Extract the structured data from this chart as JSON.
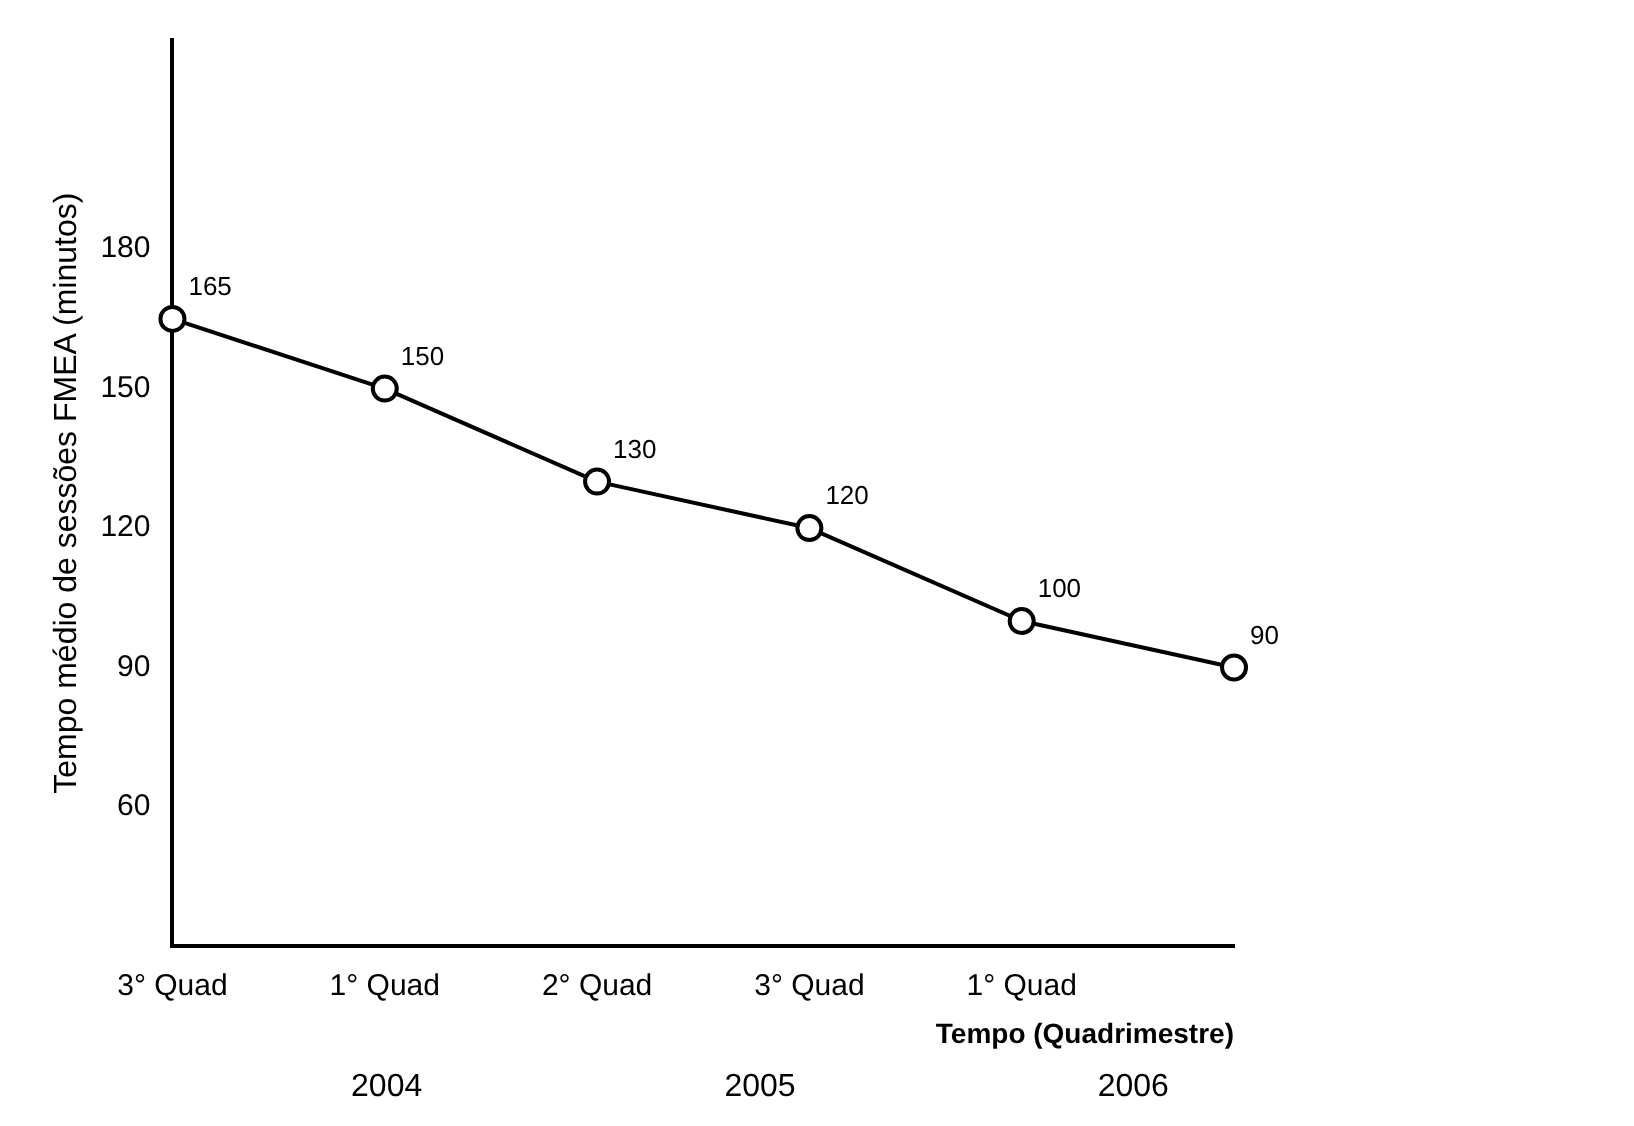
{
  "chart_data": {
    "type": "line",
    "categories": [
      "3° Quad",
      "1° Quad",
      "2° Quad",
      "3° Quad",
      "1° Quad",
      null
    ],
    "values": [
      165,
      150,
      130,
      120,
      100,
      90
    ],
    "color": "#000000",
    "ylabel": "Tempo médio de sessões FMEA (minutos)",
    "xlabel": "Tempo (Quadrimestre)",
    "ylim": [
      30,
      225
    ],
    "yticks": [
      60,
      90,
      120,
      150,
      180
    ],
    "annotations": [
      "2004",
      "2005",
      "2006"
    ],
    "data_labels": true,
    "marker": "circle",
    "grid": false,
    "legend": false
  }
}
